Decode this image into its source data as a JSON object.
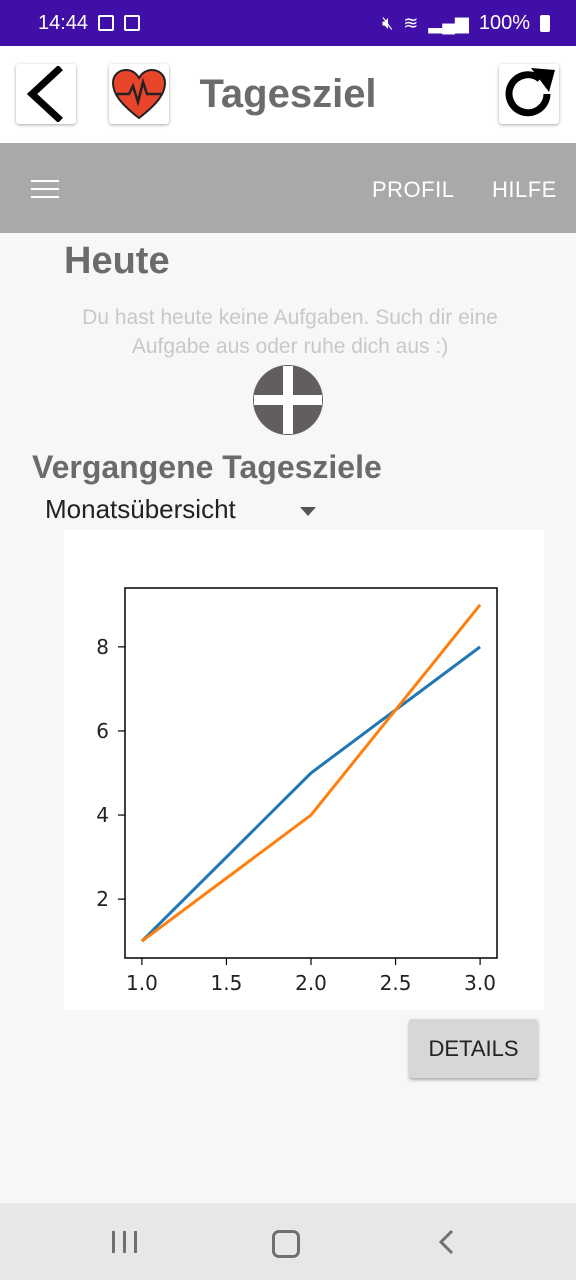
{
  "status_bar": {
    "time": "14:44",
    "battery": "100%"
  },
  "app_bar": {
    "title": "Tagesziel",
    "back_icon": "back-arrow-icon",
    "logo_icon": "heart-pulse-icon",
    "refresh_icon": "refresh-icon"
  },
  "toolbar": {
    "menu_icon": "hamburger-icon",
    "profil_label": "PROFIL",
    "hilfe_label": "HILFE"
  },
  "today": {
    "heading": "Heute",
    "empty_message": "Du hast heute keine Aufgaben. Such dir eine Aufgabe aus oder ruhe dich aus :)",
    "add_icon": "add-circle-icon"
  },
  "past": {
    "heading": "Vergangene Tagesziele",
    "dropdown_value": "Monatsübersicht"
  },
  "chart_data": {
    "type": "line",
    "x": [
      1.0,
      2.0,
      3.0
    ],
    "series": [
      {
        "values": [
          1,
          5,
          8
        ],
        "color": "#1f77b4"
      },
      {
        "values": [
          1,
          4,
          9
        ],
        "color": "#ff7f0e"
      }
    ],
    "xlim": [
      0.9,
      3.1
    ],
    "ylim": [
      0.6,
      9.4
    ],
    "x_ticks": [
      1.0,
      1.5,
      2.0,
      2.5,
      3.0
    ],
    "x_tick_labels": [
      "1.0",
      "1.5",
      "2.0",
      "2.5",
      "3.0"
    ],
    "y_ticks": [
      2,
      4,
      6,
      8
    ],
    "y_tick_labels": [
      "2",
      "4",
      "6",
      "8"
    ],
    "grid": false
  },
  "details_label": "DETAILS",
  "nav_bar": {
    "recents_icon": "recents-icon",
    "home_icon": "home-icon",
    "back_icon": "nav-back-icon"
  }
}
